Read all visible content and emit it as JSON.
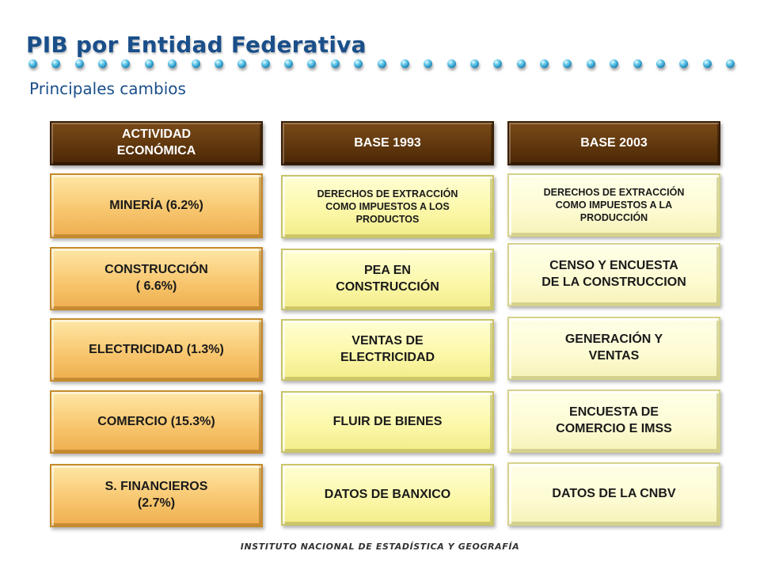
{
  "title": "PIB por Entidad Federativa",
  "subtitle": "Principales cambios",
  "colors": {
    "title": "#1a4f8a",
    "header_bg": "#5a330c",
    "activity_bg": "#f8c770",
    "base1993_bg": "#fbf7a6",
    "base2003_bg": "#fdfbd2",
    "dot": "#2a9bd0"
  },
  "table": {
    "headers": [
      "ACTIVIDAD\nECONÓMICA",
      "BASE 1993",
      "BASE 2003"
    ],
    "rows": [
      {
        "activity": "MINERÍA     (6.2%)",
        "base1993": "DERECHOS DE EXTRACCIÓN\nCOMO IMPUESTOS A LOS\nPRODUCTOS",
        "base2003": "DERECHOS DE EXTRACCIÓN\nCOMO IMPUESTOS A LA\nPRODUCCIÓN"
      },
      {
        "activity": "CONSTRUCCIÓN\n( 6.6%)",
        "base1993": "PEA  EN\nCONSTRUCCIÓN",
        "base2003": "CENSO Y ENCUESTA\nDE LA CONSTRUCCION"
      },
      {
        "activity": "ELECTRICIDAD     (1.3%)",
        "base1993": "VENTAS DE\nELECTRICIDAD",
        "base2003": "GENERACIÓN  Y\nVENTAS"
      },
      {
        "activity": "COMERCIO   (15.3%)",
        "base1993": "FLUIR DE BIENES",
        "base2003": "ENCUESTA DE\nCOMERCIO E IMSS"
      },
      {
        "activity": "S. FINANCIEROS\n(2.7%)",
        "base1993": "DATOS DE BANXICO",
        "base2003": "DATOS DE LA CNBV"
      }
    ]
  },
  "footer": "INSTITUTO NACIONAL DE ESTADÍSTICA Y GEOGRAFÍA"
}
